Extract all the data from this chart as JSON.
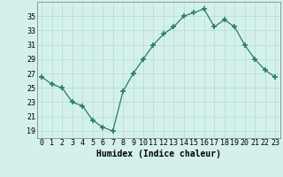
{
  "x": [
    0,
    1,
    2,
    3,
    4,
    5,
    6,
    7,
    8,
    9,
    10,
    11,
    12,
    13,
    14,
    15,
    16,
    17,
    18,
    19,
    20,
    21,
    22,
    23
  ],
  "y": [
    26.5,
    25.5,
    25.0,
    23.0,
    22.5,
    20.5,
    19.5,
    19.0,
    24.5,
    27.0,
    29.0,
    31.0,
    32.5,
    33.5,
    35.0,
    35.5,
    36.0,
    33.5,
    34.5,
    33.5,
    31.0,
    29.0,
    27.5,
    26.5
  ],
  "line_color": "#2a7a6a",
  "marker": "+",
  "marker_size": 4,
  "bg_color": "#d4f0ec",
  "grid_color": "#b8ddd8",
  "xlabel": "Humidex (Indice chaleur)",
  "xlim": [
    -0.5,
    23.5
  ],
  "ylim": [
    18,
    37
  ],
  "yticks": [
    19,
    21,
    23,
    25,
    27,
    29,
    31,
    33,
    35
  ],
  "xticks": [
    0,
    1,
    2,
    3,
    4,
    5,
    6,
    7,
    8,
    9,
    10,
    11,
    12,
    13,
    14,
    15,
    16,
    17,
    18,
    19,
    20,
    21,
    22,
    23
  ],
  "xlabel_fontsize": 7,
  "tick_fontsize": 6,
  "linewidth": 0.9,
  "marker_linewidth": 1.2
}
